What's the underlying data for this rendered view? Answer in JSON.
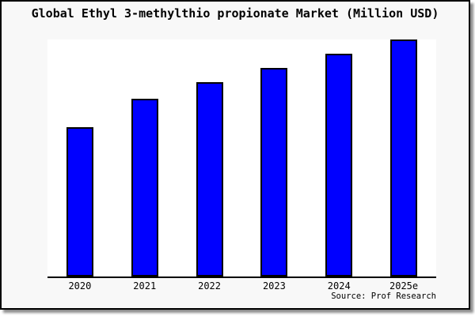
{
  "title": "Global Ethyl 3-methylthio propionate Market (Million USD)",
  "source_label": "Source: Prof Research",
  "colors": {
    "bar_fill": "#0000ff",
    "bar_border": "#000000",
    "frame_background": "#f8f8f8",
    "plot_background": "#ffffff",
    "axis": "#000000",
    "frame_border": "#000000"
  },
  "chart_data": {
    "type": "bar",
    "categories": [
      "2020",
      "2021",
      "2022",
      "2023",
      "2024",
      "2025e"
    ],
    "values": [
      63,
      75,
      82,
      88,
      94,
      100
    ],
    "title": "Global Ethyl 3-methylthio propionate Market (Million USD)",
    "xlabel": "",
    "ylabel": "",
    "ylim": [
      0,
      100
    ],
    "value_note": "relative index estimated from bar heights; no y-axis scale shown",
    "grid": false,
    "legend": false
  }
}
